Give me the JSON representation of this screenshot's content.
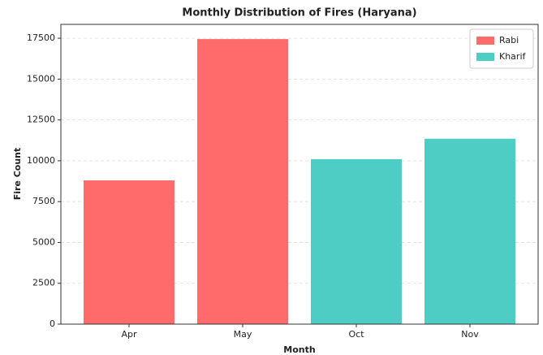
{
  "chart_data": {
    "type": "bar",
    "title": "Monthly Distribution of Fires (Haryana)",
    "x_label": "Month",
    "y_label": "Fire Count",
    "categories": [
      "Apr",
      "May",
      "Oct",
      "Nov"
    ],
    "series": [
      {
        "name": "Rabi",
        "color": "#ff6b6b",
        "values": [
          8800,
          17450,
          null,
          null
        ]
      },
      {
        "name": "Kharif",
        "color": "#4ecdc4",
        "values": [
          null,
          null,
          10100,
          11350
        ]
      }
    ],
    "ylim": [
      0,
      18350
    ],
    "yticks": [
      0,
      2500,
      5000,
      7500,
      10000,
      12500,
      15000,
      17500
    ],
    "grid": true,
    "legend": "upper right"
  }
}
